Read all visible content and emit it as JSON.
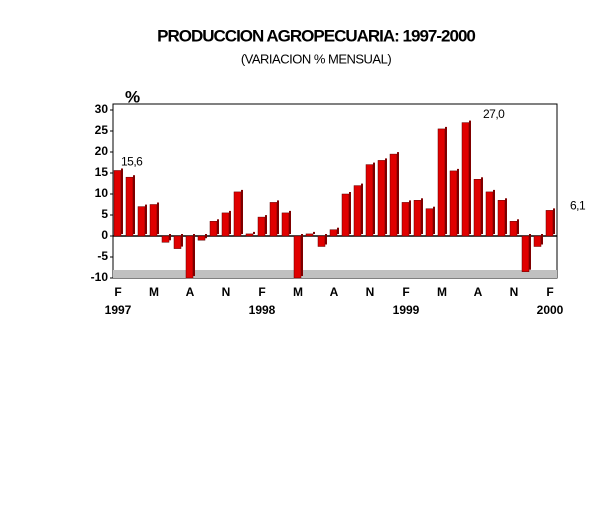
{
  "chart_data": {
    "type": "bar",
    "title": "PRODUCCION AGROPECUARIA: 1997-2000",
    "subtitle": "(VARIACION % MENSUAL)",
    "y_label": "%",
    "categories": [
      "F",
      null,
      null,
      "M",
      null,
      null,
      "A",
      null,
      null,
      "N",
      null,
      null,
      "F",
      null,
      null,
      "M",
      null,
      null,
      "A",
      null,
      null,
      "N",
      null,
      null,
      "F",
      null,
      null,
      "M",
      null,
      null,
      "A",
      null,
      null,
      "N",
      null,
      null,
      "F"
    ],
    "years": [
      "1997",
      null,
      null,
      null,
      null,
      null,
      null,
      null,
      null,
      null,
      null,
      null,
      "1998",
      null,
      null,
      null,
      null,
      null,
      null,
      null,
      null,
      null,
      null,
      null,
      "1999",
      null,
      null,
      null,
      null,
      null,
      null,
      null,
      null,
      null,
      null,
      null,
      "2000"
    ],
    "values": [
      15.6,
      14,
      7,
      7.5,
      -1.5,
      -3,
      -10,
      -1,
      3.5,
      5.5,
      10.5,
      0.5,
      4.5,
      8,
      5.5,
      -10,
      0.5,
      -2.5,
      1.5,
      10,
      12,
      17,
      18,
      19.5,
      8,
      8.5,
      6.5,
      25.5,
      15.5,
      27.0,
      13.5,
      10.5,
      8.5,
      3.5,
      -8.5,
      -2.5,
      6.1
    ],
    "value_labels": [
      "15,6",
      null,
      null,
      null,
      null,
      null,
      null,
      null,
      null,
      null,
      null,
      null,
      null,
      null,
      null,
      null,
      null,
      null,
      null,
      null,
      null,
      null,
      null,
      null,
      null,
      null,
      null,
      null,
      null,
      "27,0",
      null,
      null,
      null,
      null,
      null,
      null,
      "6,1"
    ],
    "color": "#e00000",
    "ylim": [
      -10,
      30
    ],
    "yticks": [
      30,
      25,
      20,
      15,
      10,
      5,
      0,
      -5,
      -10
    ]
  }
}
